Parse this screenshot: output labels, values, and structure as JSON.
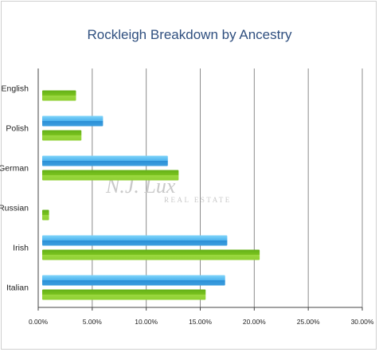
{
  "watermark": {
    "main": "N.J. Lux",
    "sub": "REAL ESTATE"
  },
  "chart_data": {
    "type": "bar",
    "orientation": "horizontal",
    "title": "Rockleigh Breakdown by Ancestry",
    "categories": [
      "English",
      "Polish",
      "German",
      "Russian",
      "Irish",
      "Italian"
    ],
    "series": [
      {
        "values": [
          null,
          6.0,
          12.0,
          null,
          17.5,
          17.3
        ],
        "color": "#3fa9e8"
      },
      {
        "values": [
          3.5,
          4.0,
          13.0,
          1.0,
          20.5,
          15.5
        ],
        "color": "#7cc41f"
      }
    ],
    "xlim": [
      0,
      30
    ],
    "ticks": [
      0,
      5,
      10,
      15,
      20,
      25,
      30
    ],
    "tick_labels": [
      "0.00%",
      "5.00%",
      "10.00%",
      "15.00%",
      "20.00%",
      "25.00%",
      "30.00%"
    ],
    "grid": true,
    "legend": "none"
  }
}
